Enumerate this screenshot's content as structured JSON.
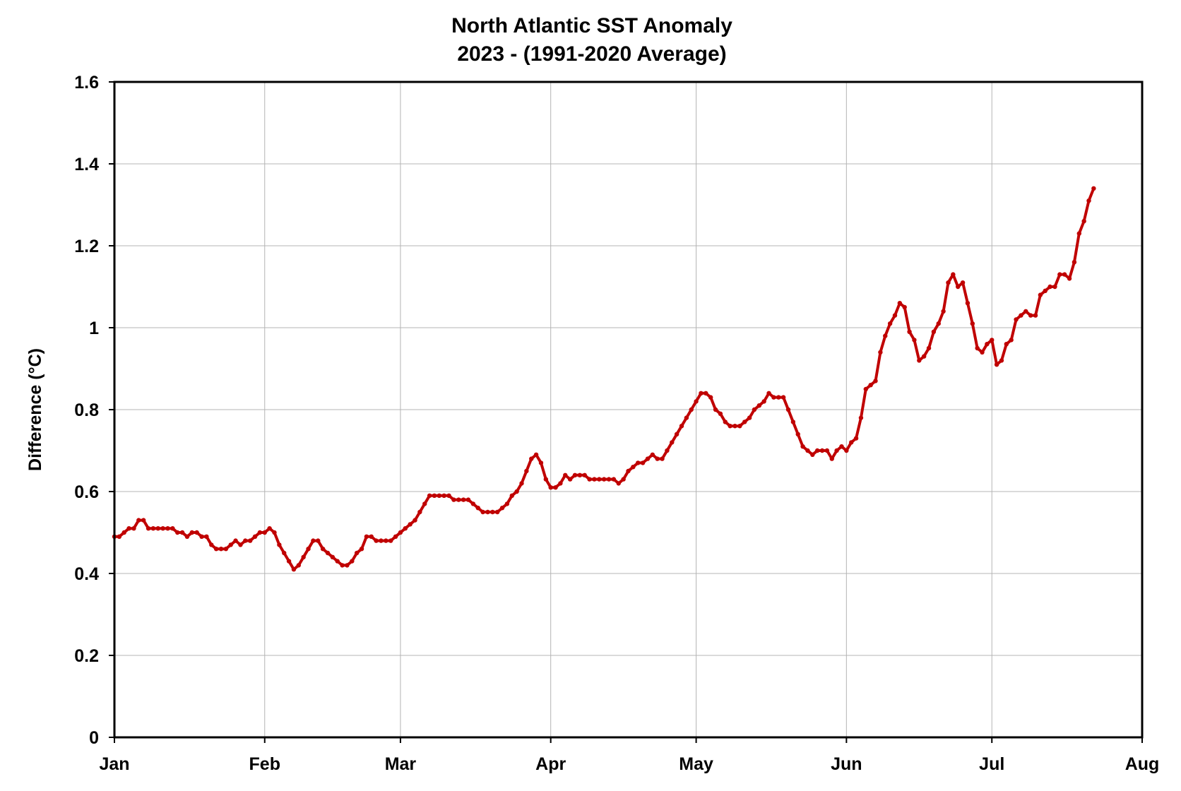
{
  "chart_data": {
    "type": "line",
    "title": "North Atlantic SST Anomaly",
    "subtitle": "2023 - (1991-2020 Average)",
    "xlabel": "",
    "ylabel": "Difference (°C)",
    "ylim": [
      0,
      1.6
    ],
    "yticks": [
      "0",
      "0.2",
      "0.4",
      "0.6",
      "0.8",
      "1",
      "1.2",
      "1.4",
      "1.6"
    ],
    "xlim": [
      "2023-01-01",
      "2023-08-01"
    ],
    "xticks": [
      {
        "label": "Jan",
        "date": "2023-01-01"
      },
      {
        "label": "Feb",
        "date": "2023-02-01"
      },
      {
        "label": "Mar",
        "date": "2023-03-01"
      },
      {
        "label": "Apr",
        "date": "2023-04-01"
      },
      {
        "label": "May",
        "date": "2023-05-01"
      },
      {
        "label": "Jun",
        "date": "2023-06-01"
      },
      {
        "label": "Jul",
        "date": "2023-07-01"
      },
      {
        "label": "Aug",
        "date": "2023-08-01"
      }
    ],
    "grid": true,
    "legend": "none",
    "line_color": "#c00000",
    "series": [
      {
        "start_date": "2023-01-01",
        "interval_days": 1,
        "values": [
          0.49,
          0.49,
          0.5,
          0.51,
          0.51,
          0.53,
          0.53,
          0.51,
          0.51,
          0.51,
          0.51,
          0.51,
          0.51,
          0.5,
          0.5,
          0.49,
          0.5,
          0.5,
          0.49,
          0.49,
          0.47,
          0.46,
          0.46,
          0.46,
          0.47,
          0.48,
          0.47,
          0.48,
          0.48,
          0.49,
          0.5,
          0.5,
          0.51,
          0.5,
          0.47,
          0.45,
          0.43,
          0.41,
          0.42,
          0.44,
          0.46,
          0.48,
          0.48,
          0.46,
          0.45,
          0.44,
          0.43,
          0.42,
          0.42,
          0.43,
          0.45,
          0.46,
          0.49,
          0.49,
          0.48,
          0.48,
          0.48,
          0.48,
          0.49,
          0.5,
          0.51,
          0.52,
          0.53,
          0.55,
          0.57,
          0.59,
          0.59,
          0.59,
          0.59,
          0.59,
          0.58,
          0.58,
          0.58,
          0.58,
          0.57,
          0.56,
          0.55,
          0.55,
          0.55,
          0.55,
          0.56,
          0.57,
          0.59,
          0.6,
          0.62,
          0.65,
          0.68,
          0.69,
          0.67,
          0.63,
          0.61,
          0.61,
          0.62,
          0.64,
          0.63,
          0.64,
          0.64,
          0.64,
          0.63,
          0.63,
          0.63,
          0.63,
          0.63,
          0.63,
          0.62,
          0.63,
          0.65,
          0.66,
          0.67,
          0.67,
          0.68,
          0.69,
          0.68,
          0.68,
          0.7,
          0.72,
          0.74,
          0.76,
          0.78,
          0.8,
          0.82,
          0.84,
          0.84,
          0.83,
          0.8,
          0.79,
          0.77,
          0.76,
          0.76,
          0.76,
          0.77,
          0.78,
          0.8,
          0.81,
          0.82,
          0.84,
          0.83,
          0.83,
          0.83,
          0.8,
          0.77,
          0.74,
          0.71,
          0.7,
          0.69,
          0.7,
          0.7,
          0.7,
          0.68,
          0.7,
          0.71,
          0.7,
          0.72,
          0.73,
          0.78,
          0.85,
          0.86,
          0.87,
          0.94,
          0.98,
          1.01,
          1.03,
          1.06,
          1.05,
          0.99,
          0.97,
          0.92,
          0.93,
          0.95,
          0.99,
          1.01,
          1.04,
          1.11,
          1.13,
          1.1,
          1.11,
          1.06,
          1.01,
          0.95,
          0.94,
          0.96,
          0.97,
          0.91,
          0.92,
          0.96,
          0.97,
          1.02,
          1.03,
          1.04,
          1.03,
          1.03,
          1.08,
          1.09,
          1.1,
          1.1,
          1.13,
          1.13,
          1.12,
          1.16,
          1.23,
          1.26,
          1.31,
          1.34
        ]
      }
    ]
  }
}
